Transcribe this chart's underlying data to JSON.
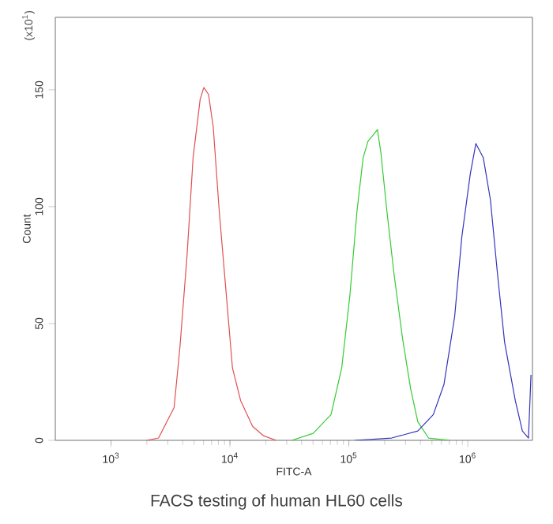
{
  "chart_data": {
    "type": "line",
    "xlabel": "FITC-A",
    "ylabel": "Count",
    "annotations": [
      "(x10$^{1}$)",
      "FACS testing of human HL60 cells"
    ],
    "log": "x",
    "xlim": [
      340,
      3500000
    ],
    "ylim": [
      0,
      181
    ],
    "xticks": [
      {
        "value": 1000,
        "label": "10$^{3}$"
      },
      {
        "value": 10000,
        "label": "10$^{4}$"
      },
      {
        "value": 100000,
        "label": "10$^{5}$"
      },
      {
        "value": 1000000,
        "label": "10$^{6}$"
      }
    ],
    "yticks": [
      0,
      50,
      100,
      150
    ],
    "marker": "none",
    "line_style": "solid",
    "series": [
      {
        "color": "#e05050",
        "x": [
          2000,
          2510,
          3390,
          3800,
          4370,
          4900,
          5620,
          6030,
          6610,
          7240,
          8130,
          9330,
          10500,
          12300,
          15500,
          19100,
          24500
        ],
        "values": [
          0,
          1,
          14,
          40,
          80,
          121,
          146,
          151,
          148,
          134,
          98,
          62,
          31,
          17,
          6,
          2,
          0
        ]
      },
      {
        "color": "#33cc33",
        "x": [
          33100,
          50100,
          70800,
          87100,
          102000,
          117000,
          132000,
          145000,
          162000,
          174000,
          186000,
          209000,
          240000,
          282000,
          331000,
          380000,
          468000,
          708000
        ],
        "values": [
          0,
          3,
          11,
          31,
          62,
          98,
          121,
          128,
          131,
          133,
          123,
          98,
          71,
          44,
          22,
          8,
          1,
          0
        ]
      },
      {
        "color": "#3333bb",
        "x": [
          112000,
          229000,
          380000,
          513000,
          631000,
          776000,
          891000,
          1050000,
          1170000,
          1350000,
          1550000,
          1780000,
          2040000,
          2510000,
          2880000,
          3240000,
          3400000
        ],
        "values": [
          0,
          1,
          4,
          11,
          24,
          53,
          87,
          114,
          127,
          121,
          103,
          71,
          42,
          17,
          4,
          1,
          28
        ]
      }
    ]
  }
}
